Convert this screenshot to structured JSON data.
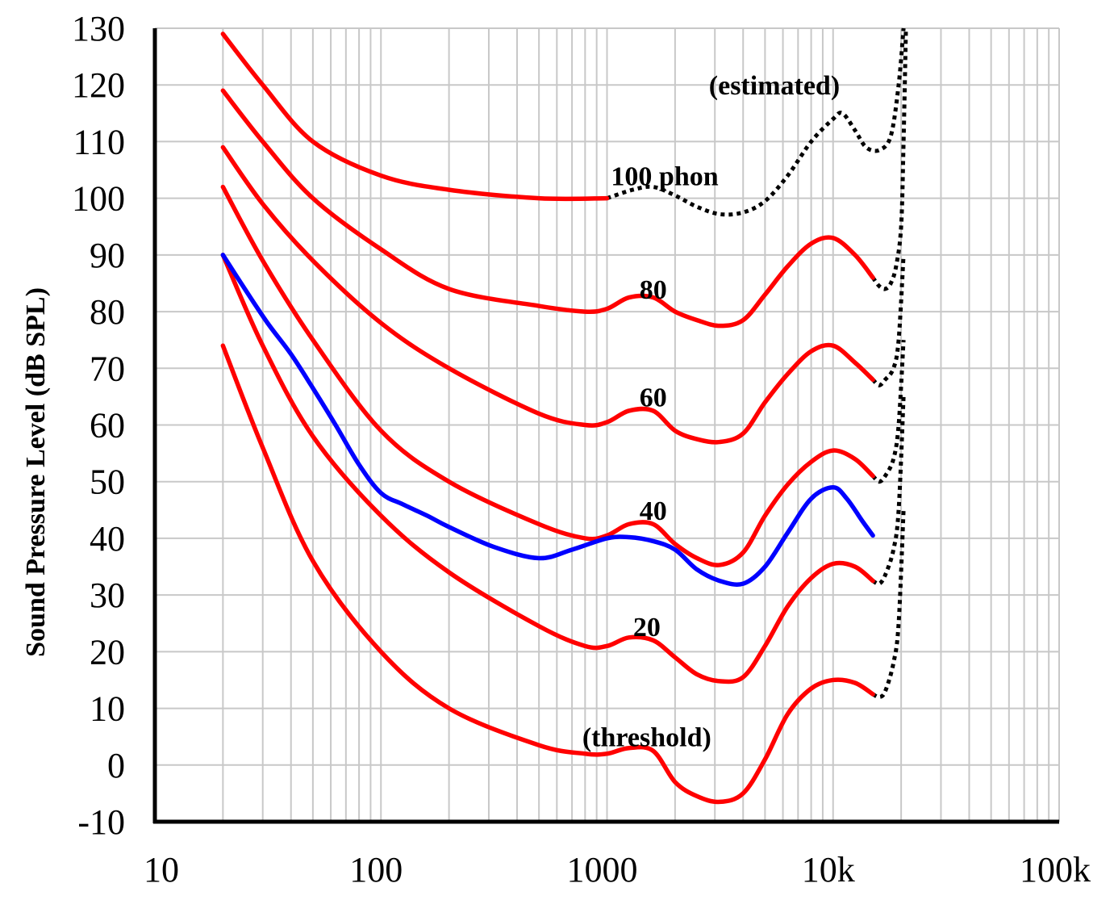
{
  "chart_data": {
    "type": "line",
    "title": "",
    "xlabel": "",
    "ylabel": "Sound Pressure Level (dB SPL)",
    "x_scale": "log",
    "xlim": [
      10,
      100000
    ],
    "ylim": [
      -10,
      130
    ],
    "x_ticks": [
      {
        "value": 10,
        "label": "10"
      },
      {
        "value": 100,
        "label": "100"
      },
      {
        "value": 1000,
        "label": "1000"
      },
      {
        "value": 10000,
        "label": "10k"
      },
      {
        "value": 100000,
        "label": "100k"
      }
    ],
    "y_ticks": [
      {
        "value": 130,
        "label": "130"
      },
      {
        "value": 120,
        "label": "120"
      },
      {
        "value": 110,
        "label": "110"
      },
      {
        "value": 100,
        "label": "100"
      },
      {
        "value": 90,
        "label": "90"
      },
      {
        "value": 80,
        "label": "80"
      },
      {
        "value": 70,
        "label": "70"
      },
      {
        "value": 60,
        "label": "60"
      },
      {
        "value": 50,
        "label": "50"
      },
      {
        "value": 40,
        "label": "40"
      },
      {
        "value": 30,
        "label": "30"
      },
      {
        "value": 20,
        "label": "20"
      },
      {
        "value": 10,
        "label": "10"
      },
      {
        "value": 0,
        "label": "0"
      },
      {
        "value": -10,
        "label": "-10"
      }
    ],
    "grid": true,
    "colors": {
      "equal_loudness": "#ff0000",
      "comparison": "#0000ff",
      "estimated": "#000000"
    },
    "series": [
      {
        "name": "100 phon",
        "color": "#ff0000",
        "style": "solid",
        "points": [
          [
            20,
            129
          ],
          [
            30,
            120
          ],
          [
            50,
            110
          ],
          [
            100,
            104
          ],
          [
            200,
            101.5
          ],
          [
            500,
            100
          ],
          [
            1000,
            100
          ]
        ]
      },
      {
        "color": "#000000",
        "style": "dotted",
        "points": [
          [
            1000,
            100
          ],
          [
            1300,
            101.5
          ],
          [
            1600,
            102
          ],
          [
            2000,
            100.5
          ],
          [
            2500,
            98.5
          ],
          [
            3150,
            97.2
          ],
          [
            4000,
            97.5
          ],
          [
            5000,
            99.5
          ],
          [
            6300,
            104
          ],
          [
            8000,
            110
          ],
          [
            10000,
            114
          ],
          [
            11000,
            115
          ],
          [
            12500,
            112
          ],
          [
            14000,
            109
          ],
          [
            16000,
            108.5
          ],
          [
            18000,
            111
          ],
          [
            19500,
            120
          ],
          [
            20500,
            130
          ]
        ]
      },
      {
        "name": "80",
        "color": "#ff0000",
        "style": "solid",
        "points": [
          [
            20,
            119
          ],
          [
            30,
            110
          ],
          [
            50,
            100
          ],
          [
            100,
            91
          ],
          [
            200,
            84
          ],
          [
            500,
            81
          ],
          [
            800,
            80
          ],
          [
            1000,
            80.5
          ],
          [
            1250,
            82.5
          ],
          [
            1600,
            82.5
          ],
          [
            2000,
            80
          ],
          [
            2500,
            78.5
          ],
          [
            3150,
            77.5
          ],
          [
            4000,
            78.5
          ],
          [
            5000,
            83
          ],
          [
            6300,
            88
          ],
          [
            8000,
            92
          ],
          [
            10000,
            93
          ],
          [
            12500,
            90
          ],
          [
            15000,
            86
          ]
        ]
      },
      {
        "color": "#000000",
        "style": "dotted",
        "points": [
          [
            15000,
            86
          ],
          [
            16000,
            84.5
          ],
          [
            17000,
            84
          ],
          [
            18000,
            85
          ],
          [
            19000,
            88
          ],
          [
            20000,
            95
          ],
          [
            20500,
            110
          ],
          [
            21000,
            130
          ]
        ]
      },
      {
        "name": "60",
        "color": "#ff0000",
        "style": "solid",
        "points": [
          [
            20,
            109
          ],
          [
            30,
            99
          ],
          [
            50,
            89
          ],
          [
            100,
            78
          ],
          [
            200,
            70
          ],
          [
            500,
            62
          ],
          [
            800,
            60
          ],
          [
            1000,
            60.5
          ],
          [
            1250,
            62.5
          ],
          [
            1600,
            62.5
          ],
          [
            2000,
            59
          ],
          [
            2500,
            57.5
          ],
          [
            3150,
            57
          ],
          [
            4000,
            58.5
          ],
          [
            5000,
            64
          ],
          [
            6300,
            69
          ],
          [
            8000,
            73
          ],
          [
            10000,
            74
          ],
          [
            12500,
            71
          ],
          [
            15000,
            68
          ]
        ]
      },
      {
        "color": "#000000",
        "style": "dotted",
        "points": [
          [
            15000,
            68
          ],
          [
            16000,
            67
          ],
          [
            17000,
            68
          ],
          [
            18500,
            70
          ],
          [
            19500,
            75
          ],
          [
            20500,
            90
          ]
        ]
      },
      {
        "name": "40",
        "color": "#ff0000",
        "style": "solid",
        "points": [
          [
            20,
            102
          ],
          [
            30,
            89
          ],
          [
            50,
            75
          ],
          [
            100,
            59
          ],
          [
            200,
            50
          ],
          [
            500,
            42.5
          ],
          [
            800,
            40
          ],
          [
            1000,
            40.5
          ],
          [
            1250,
            42.5
          ],
          [
            1600,
            42.5
          ],
          [
            2000,
            39
          ],
          [
            2500,
            36.5
          ],
          [
            3150,
            35.3
          ],
          [
            4000,
            37.5
          ],
          [
            5000,
            44
          ],
          [
            6300,
            49.5
          ],
          [
            8000,
            53.5
          ],
          [
            10000,
            55.5
          ],
          [
            12500,
            54
          ],
          [
            15000,
            51
          ]
        ]
      },
      {
        "color": "#000000",
        "style": "dotted",
        "points": [
          [
            15000,
            51
          ],
          [
            16000,
            50
          ],
          [
            17000,
            51
          ],
          [
            18500,
            54
          ],
          [
            19500,
            60
          ],
          [
            20500,
            75
          ]
        ]
      },
      {
        "name": "20",
        "color": "#ff0000",
        "style": "solid",
        "points": [
          [
            20,
            90
          ],
          [
            30,
            74
          ],
          [
            50,
            58
          ],
          [
            100,
            44
          ],
          [
            200,
            34
          ],
          [
            500,
            24.5
          ],
          [
            800,
            21
          ],
          [
            1000,
            21
          ],
          [
            1250,
            22.5
          ],
          [
            1600,
            22
          ],
          [
            2000,
            19
          ],
          [
            2500,
            16
          ],
          [
            3150,
            14.8
          ],
          [
            4000,
            15.5
          ],
          [
            5000,
            21
          ],
          [
            6300,
            28
          ],
          [
            8000,
            33
          ],
          [
            10000,
            35.5
          ],
          [
            12500,
            35
          ],
          [
            15000,
            32.5
          ]
        ]
      },
      {
        "color": "#000000",
        "style": "dotted",
        "points": [
          [
            15000,
            32.5
          ],
          [
            16000,
            32
          ],
          [
            17000,
            33.5
          ],
          [
            18500,
            38
          ],
          [
            19500,
            45
          ],
          [
            20500,
            65
          ]
        ]
      },
      {
        "name": "(threshold)",
        "color": "#ff0000",
        "style": "solid",
        "points": [
          [
            20,
            74
          ],
          [
            30,
            56
          ],
          [
            50,
            36
          ],
          [
            100,
            20
          ],
          [
            200,
            10
          ],
          [
            500,
            3.5
          ],
          [
            800,
            2
          ],
          [
            1000,
            2
          ],
          [
            1250,
            3
          ],
          [
            1600,
            2.5
          ],
          [
            2000,
            -3
          ],
          [
            2500,
            -5.5
          ],
          [
            3150,
            -6.5
          ],
          [
            4000,
            -5
          ],
          [
            5000,
            1
          ],
          [
            6300,
            9
          ],
          [
            8000,
            13.5
          ],
          [
            10000,
            15
          ],
          [
            12500,
            14.5
          ],
          [
            15000,
            12.5
          ]
        ]
      },
      {
        "color": "#000000",
        "style": "dotted",
        "points": [
          [
            15000,
            12.5
          ],
          [
            16000,
            12
          ],
          [
            17000,
            13
          ],
          [
            18500,
            18
          ],
          [
            19500,
            25
          ],
          [
            20500,
            45
          ]
        ]
      },
      {
        "color": "#0000ff",
        "style": "solid",
        "points": [
          [
            20,
            90
          ],
          [
            25,
            84
          ],
          [
            31.5,
            78
          ],
          [
            40,
            72.5
          ],
          [
            50,
            66.5
          ],
          [
            63,
            60
          ],
          [
            80,
            53
          ],
          [
            100,
            48
          ],
          [
            125,
            46
          ],
          [
            160,
            44
          ],
          [
            200,
            42
          ],
          [
            315,
            38.5
          ],
          [
            500,
            36.5
          ],
          [
            700,
            38
          ],
          [
            1000,
            40
          ],
          [
            1250,
            40.2
          ],
          [
            1600,
            39.5
          ],
          [
            2000,
            38
          ],
          [
            2500,
            34.5
          ],
          [
            3150,
            32.5
          ],
          [
            4000,
            32
          ],
          [
            5000,
            35
          ],
          [
            6300,
            41
          ],
          [
            8000,
            47
          ],
          [
            10000,
            49
          ],
          [
            11500,
            47
          ],
          [
            13500,
            43
          ],
          [
            15000,
            40.5
          ]
        ]
      }
    ],
    "annotations": [
      {
        "text": "(estimated)",
        "x": 5500,
        "y": 120
      },
      {
        "text": "100 phon",
        "x": 1800,
        "y": 104
      },
      {
        "text": "80",
        "x": 1600,
        "y": 84
      },
      {
        "text": "60",
        "x": 1600,
        "y": 65
      },
      {
        "text": "40",
        "x": 1600,
        "y": 45
      },
      {
        "text": "20",
        "x": 1500,
        "y": 24.5
      },
      {
        "text": "(threshold)",
        "x": 1500,
        "y": 5
      }
    ]
  }
}
